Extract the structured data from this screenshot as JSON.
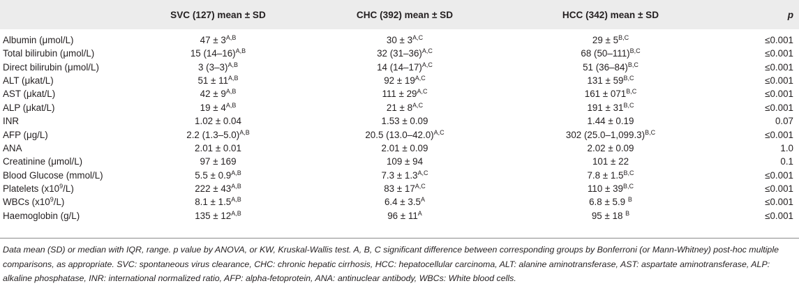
{
  "header": {
    "col0": "",
    "col1": "SVC (127) mean ± SD",
    "col2": "CHC (392) mean ± SD",
    "col3": "HCC (342) mean ± SD",
    "col4": "p"
  },
  "rows": [
    {
      "label": "Albumin (μmol/L)",
      "svc": "47 ± 3",
      "svc_sup": "A,B",
      "chc": "30 ± 3",
      "chc_sup": "A,C",
      "hcc": "29 ± 5",
      "hcc_sup": "B,C",
      "p": "≤0.001"
    },
    {
      "label": "Total bilirubin (μmol/L)",
      "svc": "15 (14–16)",
      "svc_sup": "A,B",
      "chc": "32 (31–36)",
      "chc_sup": "A,C",
      "hcc": "68 (50–111)",
      "hcc_sup": "B,C",
      "p": "≤0.001"
    },
    {
      "label": "Direct bilirubin (μmol/L)",
      "svc": "3 (3–3)",
      "svc_sup": "A,B",
      "chc": "14 (14–17)",
      "chc_sup": "A,C",
      "hcc": "51 (36–84)",
      "hcc_sup": "B,C",
      "p": "≤0.001"
    },
    {
      "label": "ALT (μkat/L)",
      "svc": "51 ± 11",
      "svc_sup": "A,B",
      "chc": "92 ± 19",
      "chc_sup": "A,C",
      "hcc": "131 ± 59",
      "hcc_sup": "B,C",
      "p": "≤0.001"
    },
    {
      "label": "AST (μkat/L)",
      "svc": "42 ± 9",
      "svc_sup": "A,B",
      "chc": "111 ± 29",
      "chc_sup": "A,C",
      "hcc": "161 ± 071",
      "hcc_sup": "B,C",
      "p": "≤0.001"
    },
    {
      "label": "ALP (μkat/L)",
      "svc": "19 ± 4",
      "svc_sup": "A,B",
      "chc": "21 ± 8",
      "chc_sup": "A,C",
      "hcc": "191 ± 31",
      "hcc_sup": "B,C",
      "p": "≤0.001"
    },
    {
      "label": "INR",
      "svc": "1.02 ± 0.04",
      "svc_sup": "",
      "chc": "1.53 ± 0.09",
      "chc_sup": "",
      "hcc": "1.44 ± 0.19",
      "hcc_sup": "",
      "p": "0.07"
    },
    {
      "label": "AFP (μg/L)",
      "svc": "2.2 (1.3–5.0)",
      "svc_sup": "A,B",
      "chc": "20.5 (13.0–42.0)",
      "chc_sup": "A,C",
      "hcc": "302 (25.0–1,099.3)",
      "hcc_sup": "B,C",
      "p": "≤0.001"
    },
    {
      "label": "ANA",
      "svc": "2.01 ± 0.01",
      "svc_sup": "",
      "chc": "2.01 ± 0.09",
      "chc_sup": "",
      "hcc": "2.02 ± 0.09",
      "hcc_sup": "",
      "p": "1.0"
    },
    {
      "label": "Creatinine (μmol/L)",
      "svc": "97 ± 169",
      "svc_sup": "",
      "chc": "109 ± 94",
      "chc_sup": "",
      "hcc": "101 ± 22",
      "hcc_sup": "",
      "p": "0.1"
    },
    {
      "label": "Blood Glucose (mmol/L)",
      "svc": "5.5 ± 0.9",
      "svc_sup": "A,B",
      "chc": "7.3 ± 1.3",
      "chc_sup": "A,C",
      "hcc": "7.8 ± 1.5",
      "hcc_sup": "B,C",
      "p": "≤0.001"
    },
    {
      "label": "Platelets (x10",
      "label_sup": "9",
      "label_tail": "/L)",
      "svc": "222 ± 43",
      "svc_sup": "A,B",
      "chc": "83 ± 17",
      "chc_sup": "A,C",
      "hcc": "110 ± 39",
      "hcc_sup": "B,C",
      "p": "≤0.001"
    },
    {
      "label": "WBCs (x10",
      "label_sup": "9",
      "label_tail": "/L)",
      "svc": "8.1 ± 1.5",
      "svc_sup": "A,B",
      "chc": "6.4 ± 3.5",
      "chc_sup": "A",
      "hcc": "6.8 ± 5.9 ",
      "hcc_sup": "B",
      "p": "≤0.001"
    },
    {
      "label": "Haemoglobin (g/L)",
      "svc": "135 ± 12",
      "svc_sup": "A,B",
      "chc": "96 ± 11",
      "chc_sup": "A",
      "hcc": "95 ± 18 ",
      "hcc_sup": "B",
      "p": "≤0.001"
    }
  ],
  "footnote": "Data mean (SD) or median with IQR, range. p value by ANOVA, or KW, Kruskal-Wallis test. A, B, C significant difference between corresponding groups by Bonferroni (or Mann-Whitney) post-hoc multiple comparisons, as appropriate. SVC: spontaneous virus clearance, CHC: chronic hepatic cirrhosis, HCC: hepatocellular carcinoma, ALT: alanine aminotransferase, AST: aspartate aminotransferase, ALP: alkaline phosphatase, INR: international normalized ratio, AFP: alpha-fetoprotein, ANA: antinuclear antibody, WBCs: White blood cells."
}
